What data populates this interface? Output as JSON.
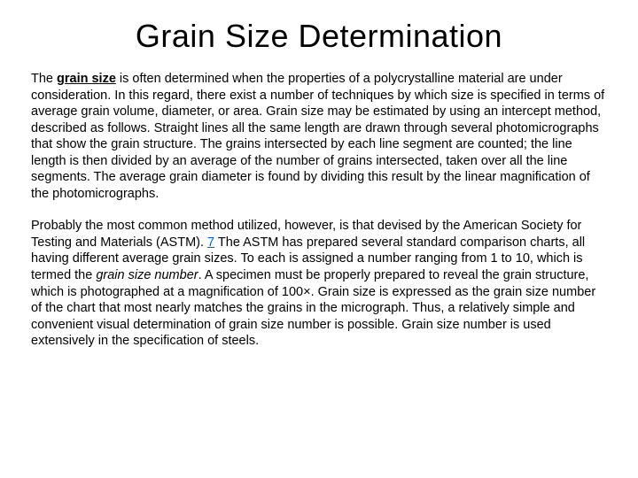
{
  "title": "Grain Size Determination",
  "p1_start": "The ",
  "p1_term": "grain size",
  "p1_rest": " is often determined when the properties of a polycrystalline material are under consideration. In this regard, there exist a number of techniques by which size is specified in terms of average grain volume, diameter, or area. Grain size may be estimated by using an intercept method, described as follows. Straight lines all the same length are drawn through several photomicrographs that show the grain structure. The grains intersected by each line segment are counted; the line length is then divided by an average of the number of grains intersected, taken over all the line segments. The average grain diameter is found by dividing this result by the linear magnification of the photomicrographs.",
  "p2_a": "Probably the most common method utilized, however, is that devised by the American Society for Testing and Materials (ASTM). ",
  "p2_link": "7",
  "p2_b": " The ASTM has prepared several standard comparison charts, all having different average grain sizes. To each is assigned a number ranging from 1 to 10, which is termed the ",
  "p2_italic": "grain size number",
  "p2_c": ". A specimen must be properly prepared to reveal the grain structure, which is photographed at a magnification of 100×. Grain size is expressed as the grain size number of the chart that most nearly matches the grains in the micrograph. Thus, a relatively simple and convenient visual determination of grain size number is possible. Grain size number is used extensively in the specification of steels.",
  "colors": {
    "background": "#ffffff",
    "text": "#000000",
    "link": "#0066cc"
  },
  "typography": {
    "title_fontsize": 36,
    "body_fontsize": 14.5,
    "font_family": "Arial"
  }
}
